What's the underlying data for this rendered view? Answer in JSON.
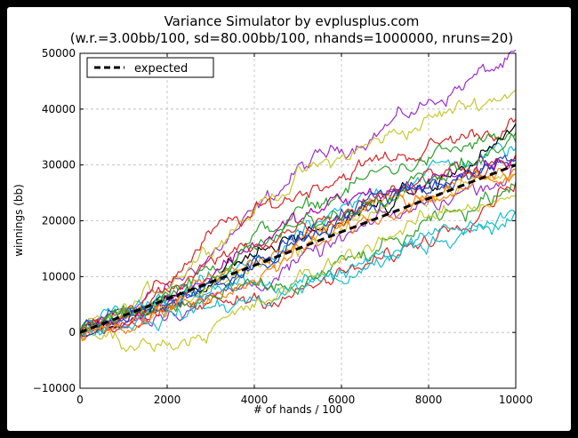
{
  "chart_data": {
    "type": "line",
    "title": "Variance Simulator by evplusplus.com",
    "subtitle": "(w.r.=3.00bb/100, sd=80.00bb/100, nhands=1000000, nruns=20)",
    "xlabel": "# of hands / 100",
    "ylabel": "winnings (bb)",
    "xlim": [
      0,
      10000
    ],
    "ylim": [
      -10000,
      50000
    ],
    "xticks": [
      0,
      2000,
      4000,
      6000,
      8000,
      10000
    ],
    "yticks": [
      -10000,
      0,
      10000,
      20000,
      30000,
      40000,
      50000
    ],
    "xtick_labels": [
      "0",
      "2000",
      "4000",
      "6000",
      "8000",
      "10000"
    ],
    "ytick_labels": [
      "−10000",
      "0",
      "10000",
      "20000",
      "30000",
      "40000",
      "50000"
    ],
    "grid": true,
    "legend": {
      "placement": "top-left",
      "entries": [
        "expected"
      ]
    },
    "expected": {
      "name": "expected",
      "color": "#000000",
      "style": "dashed",
      "x": [
        0,
        10000
      ],
      "y": [
        0,
        30000
      ]
    },
    "runs": [
      {
        "color": "#9b30c8",
        "x": [
          0,
          1000,
          2000,
          3000,
          4000,
          5000,
          6000,
          7000,
          8000,
          9000,
          10000
        ],
        "y": [
          0,
          4000,
          7500,
          14000,
          21000,
          29000,
          33000,
          37000,
          41000,
          45500,
          49000
        ]
      },
      {
        "color": "#c8c832",
        "x": [
          0,
          1000,
          2000,
          3000,
          4000,
          5000,
          6000,
          7000,
          8000,
          9000,
          10000
        ],
        "y": [
          0,
          3500,
          9000,
          16000,
          22000,
          28000,
          31000,
          35000,
          38000,
          41000,
          43500
        ]
      },
      {
        "color": "#d62728",
        "x": [
          0,
          1000,
          2000,
          3000,
          4000,
          5000,
          6000,
          7000,
          8000,
          9000,
          10000
        ],
        "y": [
          0,
          2500,
          9000,
          17500,
          21000,
          25000,
          28500,
          31000,
          33000,
          35500,
          37500
        ]
      },
      {
        "color": "#2ca02c",
        "x": [
          0,
          1000,
          2000,
          3000,
          4000,
          5000,
          6000,
          7000,
          8000,
          9000,
          10000
        ],
        "y": [
          0,
          3000,
          6500,
          11000,
          17000,
          21000,
          25000,
          29000,
          31000,
          33500,
          35000
        ]
      },
      {
        "color": "#17becf",
        "x": [
          0,
          1000,
          2000,
          3000,
          4000,
          5000,
          6000,
          7000,
          8000,
          9000,
          10000
        ],
        "y": [
          0,
          3000,
          5000,
          9000,
          12000,
          17000,
          21000,
          26000,
          29000,
          31000,
          33000
        ]
      },
      {
        "color": "#000000",
        "x": [
          0,
          1000,
          2000,
          3000,
          4000,
          5000,
          6000,
          7000,
          8000,
          9000,
          10000
        ],
        "y": [
          0,
          3000,
          5500,
          10000,
          14000,
          17000,
          20000,
          23000,
          26000,
          30000,
          37000
        ]
      },
      {
        "color": "#1f3fbf",
        "x": [
          0,
          1000,
          2000,
          3000,
          4000,
          5000,
          6000,
          7000,
          8000,
          9000,
          10000
        ],
        "y": [
          0,
          3500,
          5000,
          9000,
          13000,
          17000,
          20000,
          24000,
          26500,
          28500,
          30000
        ]
      },
      {
        "color": "#b000b0",
        "x": [
          0,
          1000,
          2000,
          3000,
          4000,
          5000,
          6000,
          7000,
          8000,
          9000,
          10000
        ],
        "y": [
          0,
          4000,
          6000,
          11000,
          16000,
          20000,
          23500,
          25000,
          27000,
          29000,
          32000
        ]
      },
      {
        "color": "#c8c832",
        "x": [
          0,
          1000,
          2000,
          3000,
          4000,
          5000,
          6000,
          7000,
          8000,
          9000,
          10000
        ],
        "y": [
          0,
          2000,
          4500,
          8000,
          12000,
          15000,
          19000,
          22500,
          25000,
          27000,
          28000
        ]
      },
      {
        "color": "#9b30c8",
        "x": [
          0,
          1000,
          2000,
          3000,
          4000,
          5000,
          6000,
          7000,
          8000,
          9000,
          10000
        ],
        "y": [
          0,
          2500,
          4000,
          6000,
          9000,
          12000,
          16500,
          20000,
          23000,
          26000,
          29000
        ]
      },
      {
        "color": "#d62728",
        "x": [
          0,
          1000,
          2000,
          3000,
          4000,
          5000,
          6000,
          7000,
          8000,
          9000,
          10000
        ],
        "y": [
          0,
          2000,
          3000,
          5000,
          6500,
          7000,
          10000,
          13000,
          17000,
          22000,
          28000
        ]
      },
      {
        "color": "#17becf",
        "x": [
          0,
          1000,
          2000,
          3000,
          4000,
          5000,
          6000,
          7000,
          8000,
          9000,
          10000
        ],
        "y": [
          0,
          3000,
          6000,
          9000,
          10000,
          8000,
          10000,
          13000,
          16000,
          19000,
          21500
        ]
      },
      {
        "color": "#2ca02c",
        "x": [
          0,
          1000,
          2000,
          3000,
          4000,
          5000,
          6000,
          7000,
          8000,
          9000,
          10000
        ],
        "y": [
          0,
          2500,
          4000,
          6000,
          7500,
          8000,
          12000,
          15000,
          19000,
          22000,
          27500
        ]
      },
      {
        "color": "#ff7f0e",
        "x": [
          0,
          1000,
          2000,
          3000,
          4000,
          5000,
          6000,
          7000,
          8000,
          9000,
          10000
        ],
        "y": [
          0,
          2500,
          5000,
          9000,
          12000,
          16000,
          20000,
          23000,
          25500,
          28000,
          29500
        ]
      },
      {
        "color": "#17becf",
        "x": [
          0,
          1000,
          2000,
          3000,
          4000,
          5000,
          6000,
          7000,
          8000,
          9000,
          10000
        ],
        "y": [
          0,
          2000,
          3000,
          4500,
          5500,
          8000,
          11000,
          14000,
          17000,
          19000,
          20500
        ]
      },
      {
        "color": "#c8c832",
        "x": [
          0,
          1000,
          2000,
          3000,
          4000,
          5000,
          6000,
          7000,
          8000,
          9000,
          10000
        ],
        "y": [
          0,
          -1500,
          -2000,
          1000,
          4000,
          9000,
          13000,
          17500,
          20000,
          23000,
          25500
        ]
      },
      {
        "color": "#d62728",
        "x": [
          0,
          1000,
          2000,
          3000,
          4000,
          5000,
          6000,
          7000,
          8000,
          9000,
          10000
        ],
        "y": [
          0,
          2500,
          7000,
          12000,
          16000,
          19000,
          22000,
          25500,
          28000,
          30000,
          31500
        ]
      },
      {
        "color": "#2ca02c",
        "x": [
          0,
          1000,
          2000,
          3000,
          4000,
          5000,
          6000,
          7000,
          8000,
          9000,
          10000
        ],
        "y": [
          0,
          3000,
          6000,
          9500,
          15000,
          18500,
          22000,
          25000,
          27500,
          30500,
          34000
        ]
      },
      {
        "color": "#1f3fbf",
        "x": [
          0,
          1000,
          2000,
          3000,
          4000,
          5000,
          6000,
          7000,
          8000,
          9000,
          10000
        ],
        "y": [
          0,
          2000,
          5000,
          8000,
          12000,
          16500,
          21000,
          24500,
          27000,
          29000,
          31000
        ]
      },
      {
        "color": "#ff7f0e",
        "x": [
          0,
          1000,
          2000,
          3000,
          4000,
          5000,
          6000,
          7000,
          8000,
          9000,
          10000
        ],
        "y": [
          0,
          1500,
          3500,
          6000,
          10000,
          14000,
          18000,
          21500,
          24000,
          26000,
          27500
        ]
      }
    ]
  }
}
